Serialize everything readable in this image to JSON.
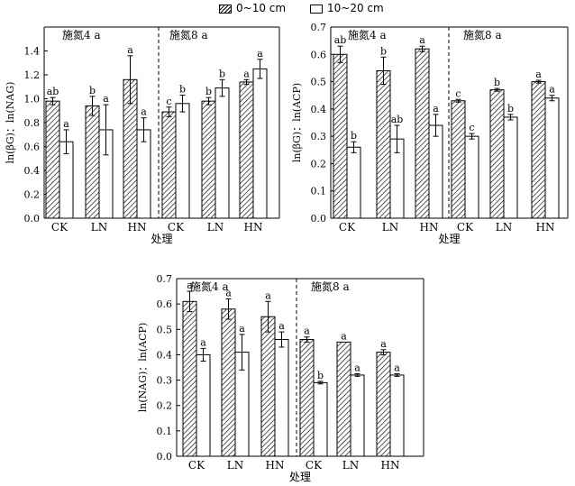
{
  "legend": {
    "labels": [
      "0~10 cm",
      "10~20 cm"
    ]
  },
  "chart_data": [
    {
      "type": "bar",
      "ylabel": "ln(βG)：ln(NAG)",
      "xlabel": "处理",
      "ylim": [
        0,
        1.6
      ],
      "yticks": [
        "0.0",
        "0.2",
        "0.4",
        "0.6",
        "0.8",
        "1.0",
        "1.2",
        "1.4"
      ],
      "groups": [
        "施氮4 a",
        "施氮8 a"
      ],
      "categories": [
        "CK",
        "LN",
        "HN",
        "CK",
        "LN",
        "HN"
      ],
      "series": [
        {
          "name": "0~10 cm",
          "values": [
            0.98,
            0.94,
            1.16,
            0.89,
            0.98,
            1.14
          ],
          "errors": [
            0.03,
            0.08,
            0.2,
            0.04,
            0.03,
            0.02
          ],
          "letters": [
            "ab",
            "b",
            "a",
            "c",
            "b",
            "a"
          ]
        },
        {
          "name": "10~20 cm",
          "values": [
            0.64,
            0.74,
            0.74,
            0.96,
            1.09,
            1.25
          ],
          "errors": [
            0.1,
            0.21,
            0.1,
            0.07,
            0.07,
            0.08
          ],
          "letters": [
            "a",
            "a",
            "a",
            "b",
            "b",
            "a"
          ]
        }
      ]
    },
    {
      "type": "bar",
      "ylabel": "ln(βG)：ln(ACP)",
      "xlabel": "处理",
      "ylim": [
        0,
        0.7
      ],
      "yticks": [
        "0.0",
        "0.1",
        "0.2",
        "0.3",
        "0.4",
        "0.5",
        "0.6",
        "0.7"
      ],
      "groups": [
        "施氮4 a",
        "施氮8 a"
      ],
      "categories": [
        "CK",
        "LN",
        "HN",
        "CK",
        "LN",
        "HN"
      ],
      "series": [
        {
          "name": "0~10 cm",
          "values": [
            0.6,
            0.54,
            0.62,
            0.43,
            0.47,
            0.5
          ],
          "errors": [
            0.03,
            0.05,
            0.01,
            0.005,
            0.005,
            0.005
          ],
          "letters": [
            "ab",
            "b",
            "a",
            "c",
            "b",
            "a"
          ]
        },
        {
          "name": "10~20 cm",
          "values": [
            0.26,
            0.29,
            0.34,
            0.3,
            0.37,
            0.44
          ],
          "errors": [
            0.02,
            0.05,
            0.04,
            0.01,
            0.01,
            0.01
          ],
          "letters": [
            "b",
            "ab",
            "a",
            "c",
            "b",
            "a"
          ]
        }
      ]
    },
    {
      "type": "bar",
      "ylabel": "ln(NAG)：ln(ACP)",
      "xlabel": "处理",
      "ylim": [
        0,
        0.7
      ],
      "yticks": [
        "0.0",
        "0.1",
        "0.2",
        "0.3",
        "0.4",
        "0.5",
        "0.6",
        "0.7"
      ],
      "groups": [
        "施氮4 a",
        "施氮8 a"
      ],
      "categories": [
        "CK",
        "LN",
        "HN",
        "CK",
        "LN",
        "HN"
      ],
      "series": [
        {
          "name": "0~10 cm",
          "values": [
            0.61,
            0.58,
            0.55,
            0.46,
            0.45,
            0.41
          ],
          "errors": [
            0.04,
            0.04,
            0.06,
            0.01,
            0.0,
            0.01
          ],
          "letters": [
            "a",
            "a",
            "a",
            "a",
            "a",
            "a"
          ]
        },
        {
          "name": "10~20 cm",
          "values": [
            0.4,
            0.41,
            0.46,
            0.29,
            0.32,
            0.32
          ],
          "errors": [
            0.025,
            0.07,
            0.03,
            0.005,
            0.005,
            0.005
          ],
          "letters": [
            "a",
            "a",
            "a",
            "b",
            "a",
            "a"
          ]
        }
      ]
    }
  ]
}
